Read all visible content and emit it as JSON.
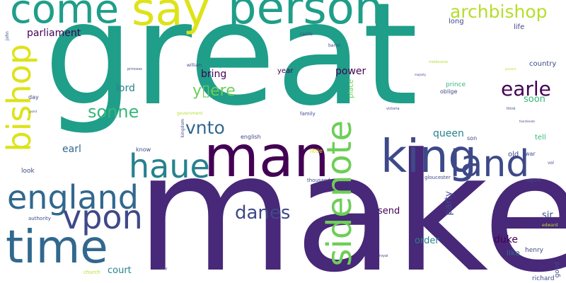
{
  "colors": {
    "background": "#ffffff",
    "indigo": "#482878",
    "dark_purple": "#440154",
    "blue": "#31688e",
    "steel_blue": "#3e4989",
    "teal": "#26828e",
    "green_teal": "#1f9e89",
    "green": "#35b779",
    "light_green": "#6ece58",
    "lime": "#b5de2b",
    "yellow": "#dde318"
  },
  "words": {
    "great": "great",
    "make": "make",
    "man": "man",
    "king": "king",
    "land": "land",
    "time": "time",
    "england": "england",
    "haue": "haue",
    "person": "person",
    "say": "say",
    "come": "come",
    "bishop": "bishop",
    "sidenote": "sidenote",
    "vpon": "vpon",
    "archbishop": "archbishop",
    "earle": "earle",
    "danes": "danes",
    "sonne": "sonne",
    "vnto": "vnto",
    "yere": "y▯ere",
    "parliament": "parliament",
    "lord": "lord",
    "bring": "bring",
    "power": "power",
    "earl": "earl",
    "queen": "queen",
    "duke": "duke",
    "order": "order",
    "send": "send",
    "court": "court",
    "party": "party",
    "soon": "soon",
    "sir": "sir",
    "like": "like",
    "henry": "henry",
    "house": "house",
    "country": "country",
    "old": "old",
    "life": "life",
    "long": "long",
    "year": "year",
    "tell": "tell",
    "place": "place",
    "prince": "prince",
    "oblige": "oblige",
    "son": "son",
    "war": "war",
    "richard": "richard",
    "good": "good",
    "know": "know",
    "look": "look",
    "day": "day",
    "english": "english",
    "family": "family",
    "little": "little",
    "thousand": "thousand",
    "gloucester": "gloucester",
    "regard": "regard",
    "authority": "authority",
    "church": "church",
    "castle": "castle",
    "baron": "baron",
    "william": "william",
    "government": "government",
    "kingdom": "kingdom",
    "john": "john",
    "victoria": "victoria",
    "vol": "vol",
    "edward": "edward",
    "royal": "royal",
    "lady": "lady",
    "think": "think",
    "melbourne": "melbourne",
    "princess": "princess",
    "majesty": "majesty",
    "present": "present",
    "foontenote": "foontenote",
    "point": "point"
  }
}
